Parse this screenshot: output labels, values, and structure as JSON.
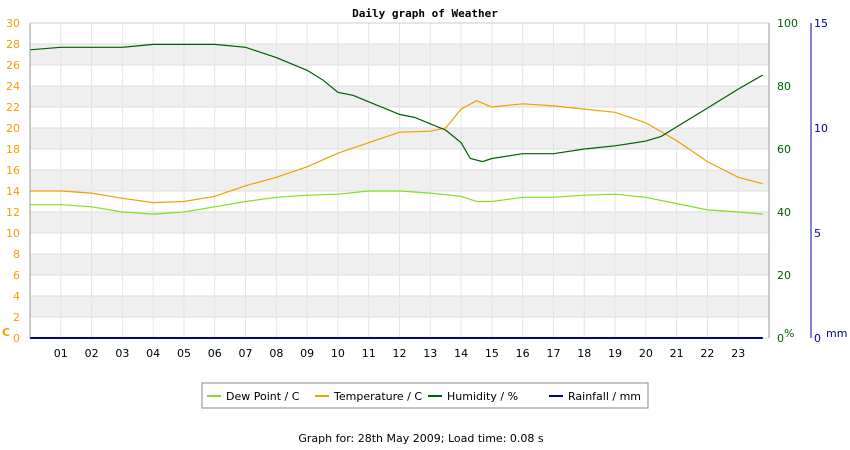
{
  "chart_data": {
    "type": "line",
    "title": "Daily graph of Weather",
    "x_ticks": [
      "01",
      "02",
      "03",
      "04",
      "05",
      "06",
      "07",
      "08",
      "09",
      "10",
      "11",
      "12",
      "13",
      "14",
      "15",
      "16",
      "17",
      "18",
      "19",
      "20",
      "21",
      "22",
      "23"
    ],
    "x_range": [
      0,
      24
    ],
    "axes": {
      "temp": {
        "unit": "C",
        "range": [
          0,
          30
        ],
        "ticks": [
          0,
          2,
          4,
          6,
          8,
          10,
          12,
          14,
          16,
          18,
          20,
          22,
          24,
          26,
          28,
          30
        ],
        "color": "#f0a000"
      },
      "humidity": {
        "unit": "%",
        "range": [
          0,
          100
        ],
        "ticks": [
          0,
          20,
          40,
          60,
          80,
          100
        ],
        "color": "#005f00"
      },
      "rainfall": {
        "unit": "mm",
        "range": [
          0,
          15
        ],
        "ticks": [
          0,
          5,
          10,
          15
        ],
        "color": "#00009f"
      }
    },
    "grid": "horizontal bands",
    "legend_position": "bottom",
    "series": [
      {
        "name": "Dew Point / C",
        "axis": "temp",
        "color": "#80e020",
        "x": [
          0,
          1,
          2,
          3,
          4,
          5,
          6,
          7,
          8,
          9,
          10,
          11,
          12,
          13,
          14,
          14.5,
          15,
          16,
          17,
          18,
          19,
          20,
          21,
          22,
          23,
          23.8
        ],
        "y": [
          12.7,
          12.7,
          12.5,
          12.0,
          11.8,
          12.0,
          12.5,
          13.0,
          13.4,
          13.6,
          13.7,
          14.0,
          14.0,
          13.8,
          13.5,
          13.0,
          13.0,
          13.4,
          13.4,
          13.6,
          13.7,
          13.4,
          12.8,
          12.2,
          12.0,
          11.8
        ]
      },
      {
        "name": "Temperature / C",
        "axis": "temp",
        "color": "#f0a000",
        "x": [
          0,
          1,
          2,
          3,
          4,
          5,
          6,
          7,
          8,
          9,
          10,
          11,
          12,
          13,
          13.5,
          14,
          14.5,
          15,
          16,
          17,
          18,
          19,
          20,
          21,
          22,
          23,
          23.8
        ],
        "y": [
          14.0,
          14.0,
          13.8,
          13.3,
          12.9,
          13.0,
          13.5,
          14.5,
          15.3,
          16.3,
          17.6,
          18.6,
          19.6,
          19.7,
          20.0,
          21.8,
          22.6,
          22.0,
          22.3,
          22.1,
          21.8,
          21.5,
          20.5,
          18.8,
          16.8,
          15.3,
          14.7
        ]
      },
      {
        "name": "Humidity / %",
        "axis": "humidity",
        "color": "#005f00",
        "x": [
          0,
          1,
          2,
          3,
          4,
          5,
          6,
          7,
          8,
          8.5,
          9,
          9.5,
          10,
          10.5,
          11,
          11.5,
          12,
          12.5,
          13,
          13.5,
          14,
          14.3,
          14.7,
          15,
          16,
          17,
          18,
          19,
          20,
          20.5,
          21,
          22,
          23,
          23.8
        ],
        "y": [
          91.5,
          92.3,
          92.3,
          92.3,
          93.2,
          93.2,
          93.2,
          92.3,
          89,
          87,
          85,
          82,
          78,
          77,
          75,
          73,
          71,
          70,
          68,
          66,
          62,
          57,
          56,
          57,
          58.5,
          58.5,
          60,
          61,
          62.5,
          64,
          67,
          73,
          79,
          83.5
        ]
      },
      {
        "name": "Rainfall / mm",
        "axis": "rainfall",
        "color": "#00009f",
        "x": [
          0,
          23.8
        ],
        "y": [
          0,
          0
        ]
      }
    ],
    "footer": "Graph for: 28th May 2009; Load time: 0.08 s"
  }
}
